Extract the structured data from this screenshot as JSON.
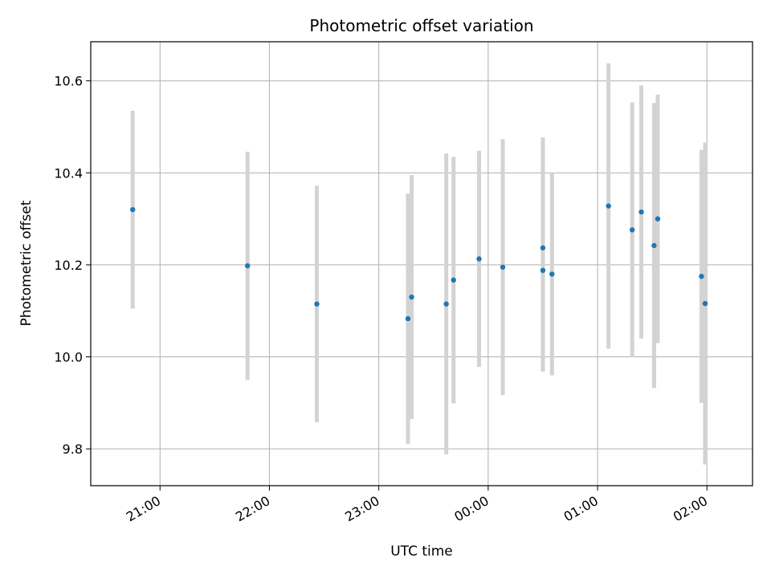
{
  "chart_data": {
    "type": "scatter",
    "title": "Photometric offset variation",
    "xlabel": "UTC time",
    "ylabel": "Photometric offset",
    "x_unit": "UTC time",
    "xlim": [
      "20:22",
      "02:25"
    ],
    "ylim": [
      9.72,
      10.685
    ],
    "x_ticks": [
      "21:00",
      "22:00",
      "23:00",
      "00:00",
      "01:00",
      "02:00"
    ],
    "y_ticks": [
      9.8,
      10.0,
      10.2,
      10.4,
      10.6
    ],
    "grid": true,
    "legend": "none",
    "colors": {
      "points": "#1f77b4",
      "errorbars": "#d3d3d3",
      "grid": "#b0b0b0",
      "axes": "#000000"
    },
    "points": [
      {
        "time": "20:45",
        "y": 10.32,
        "yerr": 0.215
      },
      {
        "time": "21:48",
        "y": 10.198,
        "yerr": 0.248
      },
      {
        "time": "22:26",
        "y": 10.115,
        "yerr": 0.257
      },
      {
        "time": "23:16",
        "y": 10.083,
        "yerr": 0.272
      },
      {
        "time": "23:18",
        "y": 10.13,
        "yerr": 0.265
      },
      {
        "time": "23:37",
        "y": 10.115,
        "yerr": 0.327
      },
      {
        "time": "23:41",
        "y": 10.167,
        "yerr": 0.268
      },
      {
        "time": "23:55",
        "y": 10.213,
        "yerr": 0.235
      },
      {
        "time": "00:08",
        "y": 10.195,
        "yerr": 0.278
      },
      {
        "time": "00:30",
        "y": 10.237,
        "yerr": 0.24
      },
      {
        "time": "00:30",
        "y": 10.188,
        "yerr": 0.22
      },
      {
        "time": "00:35",
        "y": 10.18,
        "yerr": 0.22
      },
      {
        "time": "01:06",
        "y": 10.328,
        "yerr": 0.31
      },
      {
        "time": "01:19",
        "y": 10.276,
        "yerr": 0.277
      },
      {
        "time": "01:24",
        "y": 10.315,
        "yerr": 0.275
      },
      {
        "time": "01:31",
        "y": 10.242,
        "yerr": 0.31
      },
      {
        "time": "01:33",
        "y": 10.3,
        "yerr": 0.27
      },
      {
        "time": "01:57",
        "y": 10.175,
        "yerr": 0.275
      },
      {
        "time": "01:59",
        "y": 10.116,
        "yerr": 0.35
      }
    ]
  }
}
